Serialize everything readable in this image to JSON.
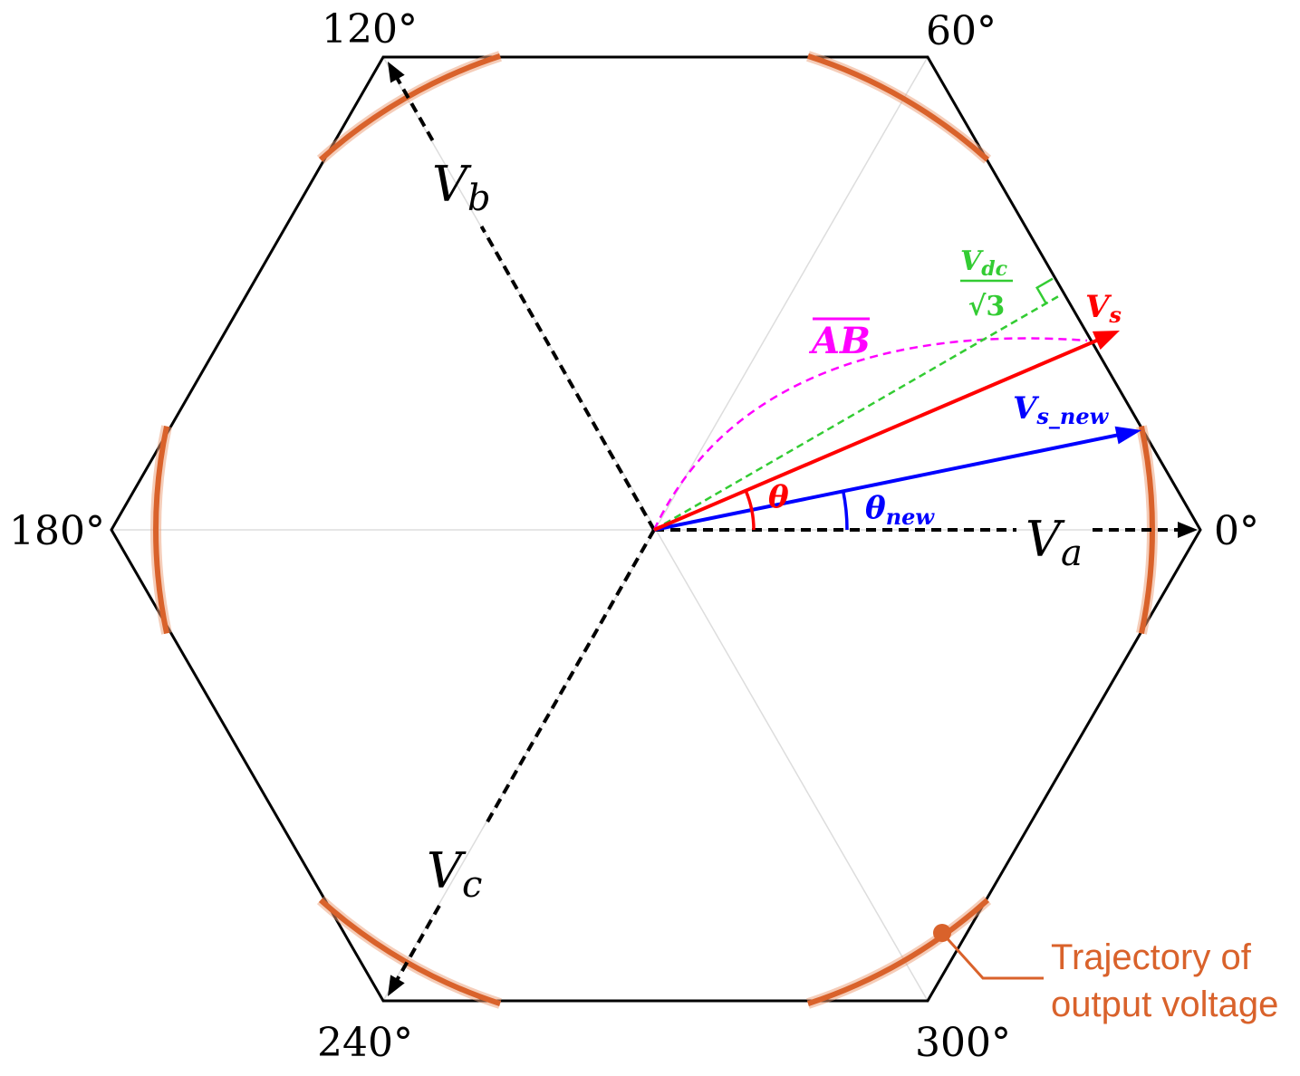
{
  "angle_labels": {
    "deg_0": "0°",
    "deg_60": "60°",
    "deg_120": "120°",
    "deg_180": "180°",
    "deg_240": "240°",
    "deg_300": "300°"
  },
  "phase_axes": {
    "a": {
      "symbol": "V",
      "subscript": "a"
    },
    "b": {
      "symbol": "V",
      "subscript": "b"
    },
    "c": {
      "symbol": "V",
      "subscript": "c"
    }
  },
  "reference_vector": {
    "symbol": "V",
    "subscript": "s",
    "color": "#ff0000"
  },
  "new_reference_vector": {
    "symbol": "V",
    "subscript": "s_new",
    "color": "#0000ff"
  },
  "angle_theta": {
    "symbol": "θ",
    "color": "#ff0000"
  },
  "angle_theta_new": {
    "symbol": "θ",
    "subscript": "new",
    "color": "#0000ff"
  },
  "vdc_over_sqrt3": {
    "symbol": "V",
    "subscript": "dc",
    "denominator": "√3",
    "color": "#33cc33"
  },
  "ab_segment": {
    "label": "AB",
    "color": "#ff00ff"
  },
  "trajectory": {
    "legend_line1": "Trajectory of",
    "legend_line2": "output voltage",
    "color": "#d9622b"
  }
}
